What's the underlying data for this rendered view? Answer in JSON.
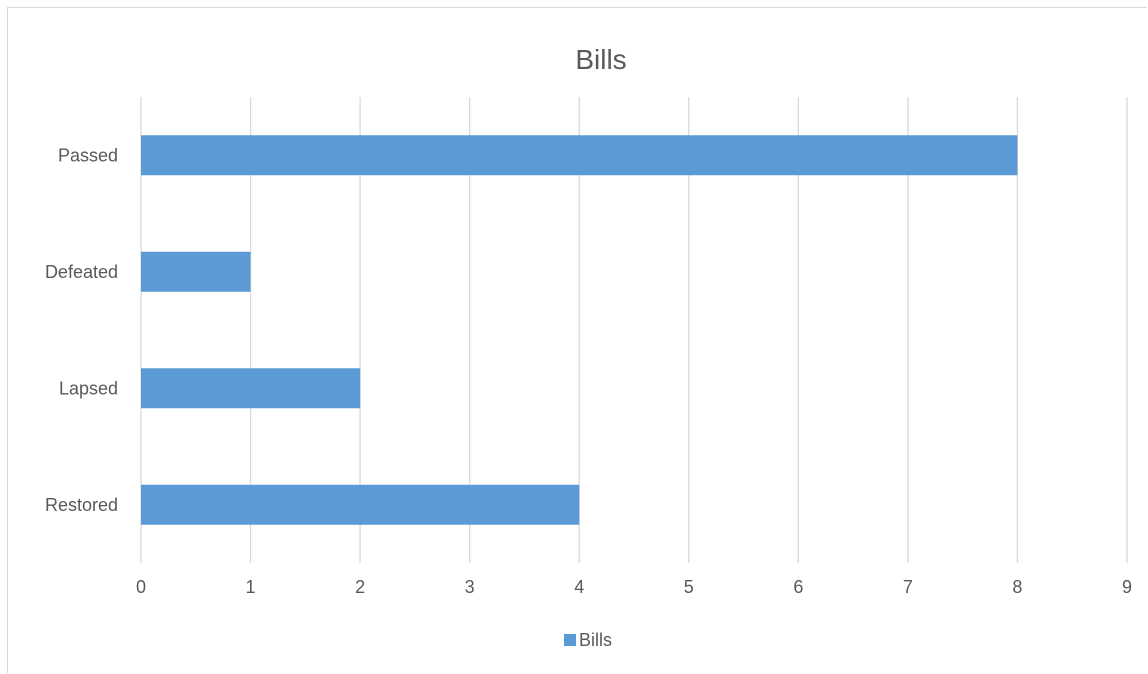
{
  "chart_data": {
    "type": "bar",
    "orientation": "horizontal",
    "title": "Bills",
    "categories": [
      "Passed",
      "Defeated",
      "Lapsed",
      "Restored"
    ],
    "series": [
      {
        "name": "Bills",
        "values": [
          8,
          1,
          2,
          4
        ],
        "color": "#5b9bd5"
      }
    ],
    "xlim": [
      0,
      9
    ],
    "x_ticks": [
      "0",
      "1",
      "2",
      "3",
      "4",
      "5",
      "6",
      "7",
      "8",
      "9"
    ],
    "grid": true,
    "legend": "bottom",
    "xlabel": "",
    "ylabel": ""
  },
  "colors": {
    "bar": "#5b9bd5",
    "grid": "#d9d9d9",
    "text": "#595959"
  }
}
